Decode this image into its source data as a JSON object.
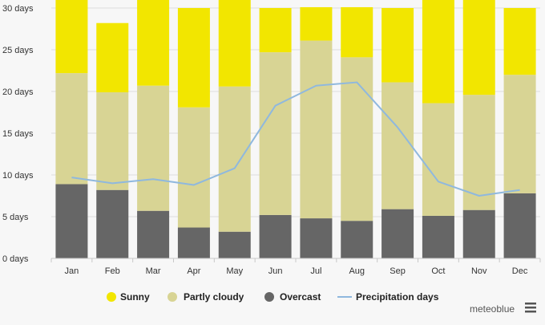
{
  "chart_data": {
    "type": "bar",
    "stacked": true,
    "categories": [
      "Jan",
      "Feb",
      "Mar",
      "Apr",
      "May",
      "Jun",
      "Jul",
      "Aug",
      "Sep",
      "Oct",
      "Nov",
      "Dec"
    ],
    "series": [
      {
        "name": "Overcast",
        "color": "#666666",
        "values": [
          8.9,
          8.2,
          5.7,
          3.7,
          3.2,
          5.2,
          4.8,
          4.5,
          5.9,
          5.1,
          5.8,
          7.8
        ]
      },
      {
        "name": "Partly cloudy",
        "color": "#d8d494",
        "values": [
          13.3,
          11.7,
          15.0,
          14.4,
          17.4,
          19.5,
          21.3,
          19.6,
          15.2,
          13.5,
          13.8,
          14.2
        ]
      },
      {
        "name": "Sunny",
        "color": "#f2e600",
        "values": [
          8.8,
          8.3,
          10.3,
          11.9,
          10.4,
          5.3,
          4.0,
          6.0,
          8.9,
          12.4,
          11.4,
          8.0
        ]
      }
    ],
    "line_series": {
      "name": "Precipitation days",
      "color": "#8fb8de",
      "values": [
        9.7,
        9.0,
        9.5,
        8.8,
        10.8,
        18.3,
        20.7,
        21.1,
        15.7,
        9.2,
        7.5,
        8.2
      ]
    },
    "y_ticks": [
      "0 days",
      "5 days",
      "10 days",
      "15 days",
      "20 days",
      "25 days",
      "30 days"
    ],
    "ylim": [
      0,
      30
    ],
    "grid": true,
    "legend_position": "bottom"
  },
  "branding": {
    "credit": "meteoblue"
  },
  "menu_icon": "hamburger-menu-icon"
}
